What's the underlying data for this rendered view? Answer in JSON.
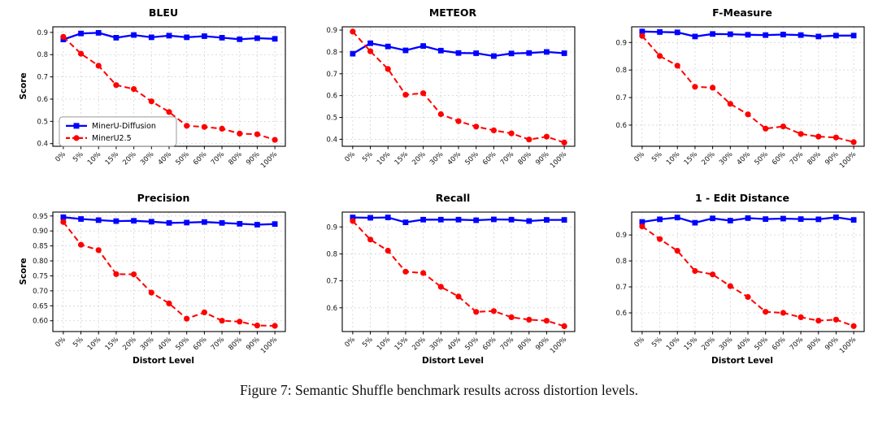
{
  "figure": {
    "caption": "Figure 7: Semantic Shuffle benchmark results across distortion levels."
  },
  "legend": {
    "position": "lower-left-of-first-chart",
    "series": [
      {
        "label": "MinerU-Diffusion",
        "color": "#0000ff",
        "marker": "square",
        "line": "solid"
      },
      {
        "label": "MinerU2.5",
        "color": "#ff0000",
        "marker": "circle",
        "line": "dashed"
      }
    ]
  },
  "chart_data": [
    {
      "type": "line",
      "title": "BLEU",
      "xlabel": "",
      "ylabel": "Score",
      "categories": [
        "0%",
        "5%",
        "10%",
        "15%",
        "20%",
        "30%",
        "40%",
        "50%",
        "60%",
        "70%",
        "80%",
        "90%",
        "100%"
      ],
      "ylim": [
        0.388,
        0.925
      ],
      "yticks": [
        0.4,
        0.5,
        0.6,
        0.7,
        0.8,
        0.9
      ],
      "ytick_labels": [
        "0.4",
        "0.5",
        "0.6",
        "0.7",
        "0.8",
        "0.9"
      ],
      "grid": true,
      "show_legend": true,
      "series": [
        {
          "name": "MinerU-Diffusion",
          "values": [
            0.868,
            0.895,
            0.898,
            0.876,
            0.888,
            0.878,
            0.885,
            0.878,
            0.883,
            0.876,
            0.869,
            0.874,
            0.871
          ]
        },
        {
          "name": "MinerU2.5",
          "values": [
            0.88,
            0.804,
            0.75,
            0.663,
            0.645,
            0.59,
            0.542,
            0.48,
            0.475,
            0.467,
            0.445,
            0.442,
            0.417
          ]
        }
      ]
    },
    {
      "type": "line",
      "title": "METEOR",
      "xlabel": "",
      "ylabel": "",
      "categories": [
        "0%",
        "5%",
        "10%",
        "15%",
        "20%",
        "30%",
        "40%",
        "50%",
        "60%",
        "70%",
        "80%",
        "90%",
        "100%"
      ],
      "ylim": [
        0.368,
        0.915
      ],
      "yticks": [
        0.4,
        0.5,
        0.6,
        0.7,
        0.8,
        0.9
      ],
      "ytick_labels": [
        "0.4",
        "0.5",
        "0.6",
        "0.7",
        "0.8",
        "0.9"
      ],
      "grid": true,
      "show_legend": false,
      "series": [
        {
          "name": "MinerU-Diffusion",
          "values": [
            0.792,
            0.84,
            0.825,
            0.807,
            0.827,
            0.806,
            0.795,
            0.794,
            0.781,
            0.793,
            0.795,
            0.8,
            0.794
          ]
        },
        {
          "name": "MinerU2.5",
          "values": [
            0.893,
            0.803,
            0.722,
            0.604,
            0.611,
            0.515,
            0.483,
            0.458,
            0.441,
            0.427,
            0.399,
            0.412,
            0.385
          ]
        }
      ]
    },
    {
      "type": "line",
      "title": "F-Measure",
      "xlabel": "",
      "ylabel": "",
      "categories": [
        "0%",
        "5%",
        "10%",
        "15%",
        "20%",
        "30%",
        "40%",
        "50%",
        "60%",
        "70%",
        "80%",
        "90%",
        "100%"
      ],
      "ylim": [
        0.523,
        0.957
      ],
      "yticks": [
        0.6,
        0.7,
        0.8,
        0.9
      ],
      "ytick_labels": [
        "0.6",
        "0.7",
        "0.8",
        "0.9"
      ],
      "grid": true,
      "show_legend": false,
      "series": [
        {
          "name": "MinerU-Diffusion",
          "values": [
            0.94,
            0.938,
            0.937,
            0.922,
            0.931,
            0.93,
            0.928,
            0.927,
            0.929,
            0.927,
            0.922,
            0.925,
            0.925
          ]
        },
        {
          "name": "MinerU2.5",
          "values": [
            0.924,
            0.851,
            0.816,
            0.739,
            0.736,
            0.677,
            0.639,
            0.587,
            0.595,
            0.568,
            0.558,
            0.555,
            0.538
          ]
        }
      ]
    },
    {
      "type": "line",
      "title": "Precision",
      "xlabel": "Distort Level",
      "ylabel": "Score",
      "categories": [
        "0%",
        "5%",
        "10%",
        "15%",
        "20%",
        "30%",
        "40%",
        "50%",
        "60%",
        "70%",
        "80%",
        "90%",
        "100%"
      ],
      "ylim": [
        0.564,
        0.963
      ],
      "yticks": [
        0.6,
        0.65,
        0.7,
        0.75,
        0.8,
        0.85,
        0.9,
        0.95
      ],
      "ytick_labels": [
        "0.60",
        "0.65",
        "0.70",
        "0.75",
        "0.80",
        "0.85",
        "0.90",
        "0.95"
      ],
      "grid": true,
      "show_legend": false,
      "series": [
        {
          "name": "MinerU-Diffusion",
          "values": [
            0.946,
            0.94,
            0.936,
            0.933,
            0.934,
            0.931,
            0.927,
            0.928,
            0.93,
            0.927,
            0.924,
            0.921,
            0.923
          ]
        },
        {
          "name": "MinerU2.5",
          "values": [
            0.93,
            0.854,
            0.836,
            0.756,
            0.755,
            0.694,
            0.658,
            0.607,
            0.628,
            0.6,
            0.597,
            0.584,
            0.583
          ]
        }
      ]
    },
    {
      "type": "line",
      "title": "Recall",
      "xlabel": "Distort Level",
      "ylabel": "",
      "categories": [
        "0%",
        "5%",
        "10%",
        "15%",
        "20%",
        "30%",
        "40%",
        "50%",
        "60%",
        "70%",
        "80%",
        "90%",
        "100%"
      ],
      "ylim": [
        0.512,
        0.955
      ],
      "yticks": [
        0.6,
        0.7,
        0.8,
        0.9
      ],
      "ytick_labels": [
        "0.6",
        "0.7",
        "0.8",
        "0.9"
      ],
      "grid": true,
      "show_legend": false,
      "series": [
        {
          "name": "MinerU-Diffusion",
          "values": [
            0.935,
            0.934,
            0.935,
            0.917,
            0.927,
            0.927,
            0.927,
            0.925,
            0.928,
            0.927,
            0.922,
            0.926,
            0.926
          ]
        },
        {
          "name": "MinerU2.5",
          "values": [
            0.922,
            0.853,
            0.812,
            0.734,
            0.729,
            0.678,
            0.642,
            0.585,
            0.588,
            0.565,
            0.556,
            0.552,
            0.532
          ]
        }
      ]
    },
    {
      "type": "line",
      "title": "1 - Edit Distance",
      "xlabel": "Distort Level",
      "ylabel": "",
      "categories": [
        "0%",
        "5%",
        "10%",
        "15%",
        "20%",
        "30%",
        "40%",
        "50%",
        "60%",
        "70%",
        "80%",
        "90%",
        "100%"
      ],
      "ylim": [
        0.528,
        0.988
      ],
      "yticks": [
        0.6,
        0.7,
        0.8,
        0.9
      ],
      "ytick_labels": [
        "0.6",
        "0.7",
        "0.8",
        "0.9"
      ],
      "grid": true,
      "show_legend": false,
      "series": [
        {
          "name": "MinerU-Diffusion",
          "values": [
            0.95,
            0.96,
            0.967,
            0.947,
            0.964,
            0.955,
            0.965,
            0.961,
            0.963,
            0.961,
            0.96,
            0.968,
            0.958
          ]
        },
        {
          "name": "MinerU2.5",
          "values": [
            0.933,
            0.884,
            0.839,
            0.761,
            0.748,
            0.703,
            0.661,
            0.604,
            0.6,
            0.583,
            0.57,
            0.574,
            0.549
          ]
        }
      ]
    }
  ]
}
